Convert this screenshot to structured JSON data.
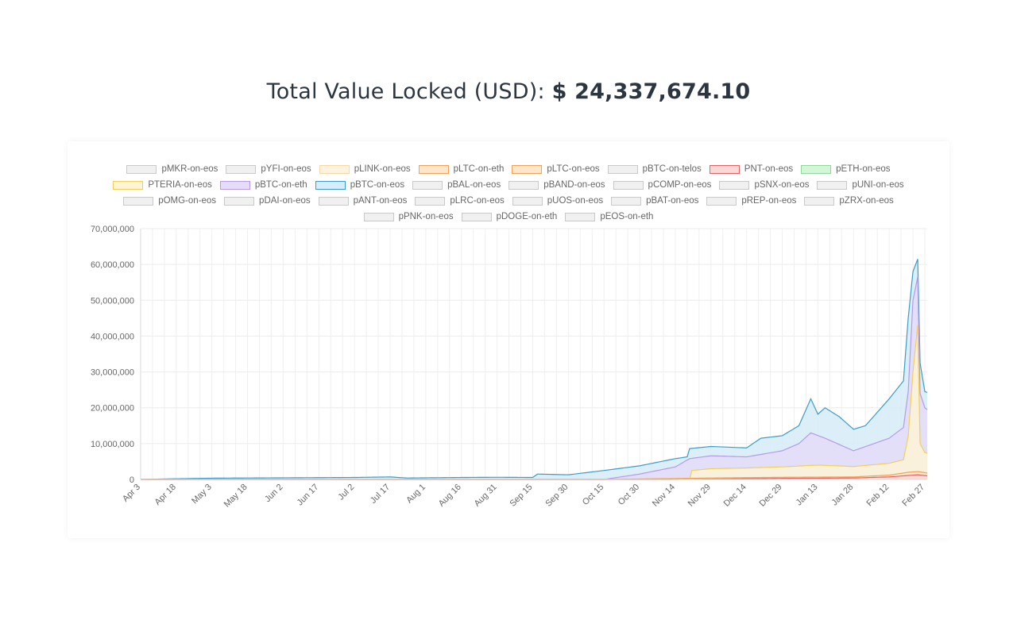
{
  "header": {
    "title_prefix": "Total Value Locked (USD):",
    "title_value": "$ 24,337,674.10"
  },
  "legend": [
    {
      "label": "pMKR-on-eos",
      "fill": "#f0f0f0",
      "stroke": "#c9c9c9"
    },
    {
      "label": "pYFI-on-eos",
      "fill": "#f0f0f0",
      "stroke": "#c9c9c9"
    },
    {
      "label": "pLINK-on-eos",
      "fill": "#fdf3df",
      "stroke": "#f5d9a8"
    },
    {
      "label": "pLTC-on-eth",
      "fill": "#fce6cc",
      "stroke": "#f0a35a"
    },
    {
      "label": "pLTC-on-eos",
      "fill": "#fce6cc",
      "stroke": "#f0a35a"
    },
    {
      "label": "pBTC-on-telos",
      "fill": "#f0f0f0",
      "stroke": "#c9c9c9"
    },
    {
      "label": "PNT-on-eos",
      "fill": "#fbd8d8",
      "stroke": "#e06666"
    },
    {
      "label": "pETH-on-eos",
      "fill": "#d5f5d9",
      "stroke": "#8fd99b"
    },
    {
      "label": "PTERIA-on-eos",
      "fill": "#fdf5d6",
      "stroke": "#f2cf5b"
    },
    {
      "label": "pBTC-on-eth",
      "fill": "#e5dcf8",
      "stroke": "#b49ae8"
    },
    {
      "label": "pBTC-on-eos",
      "fill": "#d6ecf8",
      "stroke": "#3b9ccc"
    },
    {
      "label": "pBAL-on-eos",
      "fill": "#f0f0f0",
      "stroke": "#c9c9c9"
    },
    {
      "label": "pBAND-on-eos",
      "fill": "#f0f0f0",
      "stroke": "#c9c9c9"
    },
    {
      "label": "pCOMP-on-eos",
      "fill": "#f0f0f0",
      "stroke": "#c9c9c9"
    },
    {
      "label": "pSNX-on-eos",
      "fill": "#f0f0f0",
      "stroke": "#c9c9c9"
    },
    {
      "label": "pUNI-on-eos",
      "fill": "#f0f0f0",
      "stroke": "#c9c9c9"
    },
    {
      "label": "pOMG-on-eos",
      "fill": "#f0f0f0",
      "stroke": "#c9c9c9"
    },
    {
      "label": "pDAI-on-eos",
      "fill": "#f0f0f0",
      "stroke": "#c9c9c9"
    },
    {
      "label": "pANT-on-eos",
      "fill": "#f0f0f0",
      "stroke": "#c9c9c9"
    },
    {
      "label": "pLRC-on-eos",
      "fill": "#f0f0f0",
      "stroke": "#c9c9c9"
    },
    {
      "label": "pUOS-on-eos",
      "fill": "#f0f0f0",
      "stroke": "#c9c9c9"
    },
    {
      "label": "pBAT-on-eos",
      "fill": "#f0f0f0",
      "stroke": "#c9c9c9"
    },
    {
      "label": "pREP-on-eos",
      "fill": "#f0f0f0",
      "stroke": "#c9c9c9"
    },
    {
      "label": "pZRX-on-eos",
      "fill": "#f0f0f0",
      "stroke": "#c9c9c9"
    },
    {
      "label": "pPNK-on-eos",
      "fill": "#f0f0f0",
      "stroke": "#c9c9c9"
    },
    {
      "label": "pDOGE-on-eth",
      "fill": "#f0f0f0",
      "stroke": "#c9c9c9"
    },
    {
      "label": "pEOS-on-eth",
      "fill": "#f0f0f0",
      "stroke": "#c9c9c9"
    }
  ],
  "chart_data": {
    "type": "area",
    "stacked": true,
    "ylim": [
      0,
      70000000
    ],
    "yticks": [
      0,
      10000000,
      20000000,
      30000000,
      40000000,
      50000000,
      60000000,
      70000000
    ],
    "ytick_labels": [
      "0",
      "10,000,000",
      "20,000,000",
      "30,000,000",
      "40,000,000",
      "50,000,000",
      "60,000,000",
      "70,000,000"
    ],
    "xtick_labels": [
      "Apr 3",
      "Apr 18",
      "May 3",
      "May 18",
      "Jun 2",
      "Jun 17",
      "Jul 2",
      "Jul 17",
      "Aug 1",
      "Aug 16",
      "Aug 31",
      "Sep 15",
      "Sep 30",
      "Oct 15",
      "Oct 30",
      "Nov 14",
      "Nov 29",
      "Dec 14",
      "Dec 29",
      "Jan 13",
      "Jan 28",
      "Feb 12",
      "Feb 27"
    ],
    "grid": true,
    "legend_position": "top",
    "series": [
      {
        "name": "pBTC-on-eos",
        "color": "#3b9ccc",
        "fill": "#d6ecf8",
        "points": [
          [
            "Apr 3",
            0
          ],
          [
            "Apr 18",
            200000
          ],
          [
            "May 3",
            350000
          ],
          [
            "May 18",
            400000
          ],
          [
            "Jun 2",
            450000
          ],
          [
            "Jun 17",
            500000
          ],
          [
            "Jul 2",
            550000
          ],
          [
            "Jul 17",
            700000
          ],
          [
            "Jul 24",
            400000
          ],
          [
            "Aug 1",
            450000
          ],
          [
            "Aug 16",
            550000
          ],
          [
            "Aug 31",
            600000
          ],
          [
            "Sep 15",
            550000
          ],
          [
            "Sep 17",
            1500000
          ],
          [
            "Sep 30",
            1300000
          ],
          [
            "Oct 15",
            2500000
          ],
          [
            "Oct 30",
            3800000
          ],
          [
            "Nov 14",
            5800000
          ],
          [
            "Nov 19",
            6300000
          ],
          [
            "Nov 20",
            8600000
          ],
          [
            "Nov 29",
            9200000
          ],
          [
            "Dec 14",
            8800000
          ],
          [
            "Dec 20",
            11500000
          ],
          [
            "Dec 29",
            12200000
          ],
          [
            "Jan 5",
            15000000
          ],
          [
            "Jan 10",
            22500000
          ],
          [
            "Jan 13",
            18200000
          ],
          [
            "Jan 16",
            20000000
          ],
          [
            "Jan 22",
            17500000
          ],
          [
            "Jan 28",
            14000000
          ],
          [
            "Feb 2",
            15000000
          ],
          [
            "Feb 12",
            22500000
          ],
          [
            "Feb 18",
            27500000
          ],
          [
            "Feb 20",
            45000000
          ],
          [
            "Feb 22",
            58000000
          ],
          [
            "Feb 24",
            61500000
          ],
          [
            "Feb 25",
            32500000
          ],
          [
            "Feb 27",
            24500000
          ],
          [
            "Feb 28",
            24300000
          ]
        ]
      },
      {
        "name": "pBTC-on-eth",
        "color": "#b49ae8",
        "fill": "#e5dcf8",
        "points": [
          [
            "Oct 15",
            0
          ],
          [
            "Oct 30",
            1500000
          ],
          [
            "Nov 14",
            3500000
          ],
          [
            "Nov 20",
            5800000
          ],
          [
            "Nov 29",
            6600000
          ],
          [
            "Dec 14",
            6300000
          ],
          [
            "Dec 29",
            8000000
          ],
          [
            "Jan 5",
            10000000
          ],
          [
            "Jan 10",
            13000000
          ],
          [
            "Jan 16",
            11500000
          ],
          [
            "Jan 28",
            8000000
          ],
          [
            "Feb 12",
            11500000
          ],
          [
            "Feb 18",
            14500000
          ],
          [
            "Feb 20",
            24500000
          ],
          [
            "Feb 22",
            50000000
          ],
          [
            "Feb 24",
            56500000
          ],
          [
            "Feb 25",
            24000000
          ],
          [
            "Feb 27",
            20000000
          ],
          [
            "Feb 28",
            19500000
          ]
        ]
      },
      {
        "name": "PTERIA-on-eos",
        "color": "#f2cf5b",
        "fill": "#fdf5d6",
        "points": [
          [
            "Nov 20",
            0
          ],
          [
            "Nov 21",
            2500000
          ],
          [
            "Nov 29",
            3000000
          ],
          [
            "Dec 14",
            3200000
          ],
          [
            "Dec 29",
            3500000
          ],
          [
            "Jan 13",
            4000000
          ],
          [
            "Jan 28",
            3600000
          ],
          [
            "Feb 12",
            4500000
          ],
          [
            "Feb 18",
            5500000
          ],
          [
            "Feb 20",
            12000000
          ],
          [
            "Feb 22",
            30000000
          ],
          [
            "Feb 24",
            43000000
          ],
          [
            "Feb 25",
            10000000
          ],
          [
            "Feb 27",
            7500000
          ],
          [
            "Feb 28",
            7300000
          ]
        ]
      },
      {
        "name": "pLTC-on-eos",
        "color": "#f0a35a",
        "fill": "#fce6cc",
        "points": [
          [
            "Oct 15",
            0
          ],
          [
            "Nov 29",
            400000
          ],
          [
            "Dec 29",
            600000
          ],
          [
            "Jan 28",
            700000
          ],
          [
            "Feb 12",
            1200000
          ],
          [
            "Feb 20",
            2000000
          ],
          [
            "Feb 24",
            2200000
          ],
          [
            "Feb 28",
            1800000
          ]
        ]
      },
      {
        "name": "PNT-on-eos",
        "color": "#e06666",
        "fill": "#fbd8d8",
        "points": [
          [
            "Nov 14",
            0
          ],
          [
            "Dec 29",
            300000
          ],
          [
            "Jan 28",
            400000
          ],
          [
            "Feb 12",
            700000
          ],
          [
            "Feb 20",
            1100000
          ],
          [
            "Feb 24",
            1300000
          ],
          [
            "Feb 28",
            1000000
          ]
        ]
      }
    ]
  }
}
